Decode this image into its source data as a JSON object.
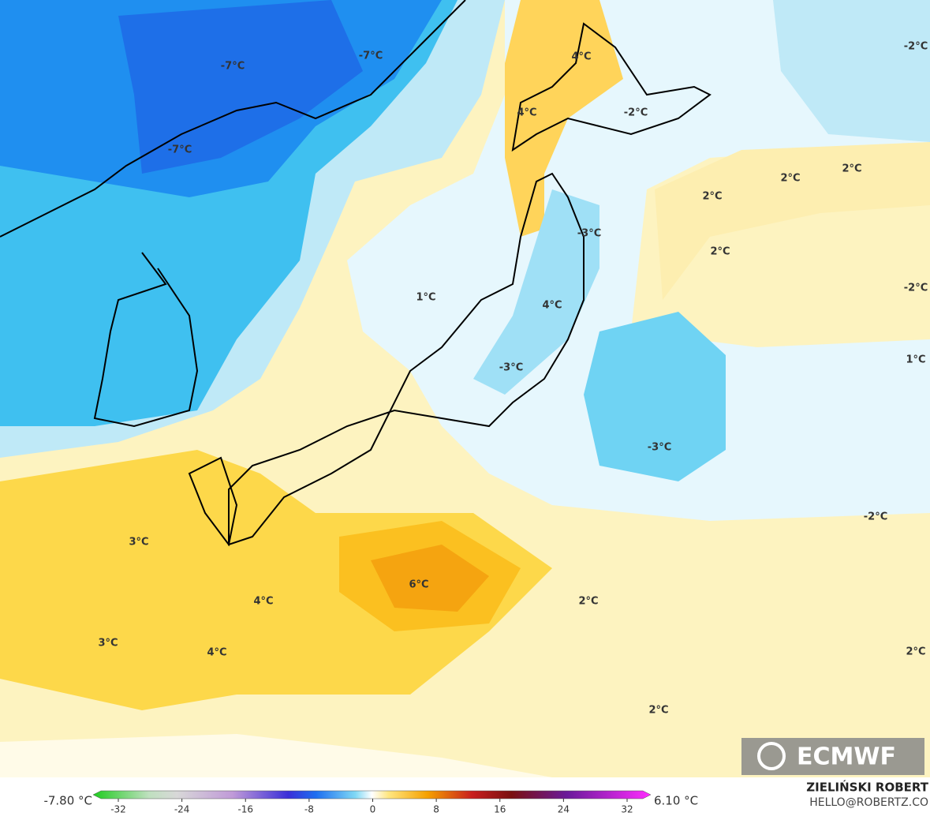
{
  "map": {
    "contour_labels": [
      "-7°C",
      "-7°C",
      "-7°C",
      "4°C",
      "4°C",
      "-2°C",
      "-2°C",
      "2°C",
      "2°C",
      "2°C",
      "-3°C",
      "2°C",
      "1°C",
      "-2°C",
      "4°C",
      "-3°C",
      "1°C",
      "-3°C",
      "-2°C",
      "3°C",
      "6°C",
      "4°C",
      "2°C",
      "3°C",
      "4°C",
      "2°C",
      "2°C"
    ],
    "logo": "ECMWF"
  },
  "colorbar": {
    "min_label": "-7.80 °C",
    "max_label": "6.10 °C",
    "ticks": [
      -32,
      -24,
      -16,
      -8,
      0,
      8,
      16,
      24,
      32
    ]
  },
  "credits": {
    "author": "ZIELIŃSKI ROBERT",
    "email": "HELLO@ROBERTZ.CO"
  }
}
